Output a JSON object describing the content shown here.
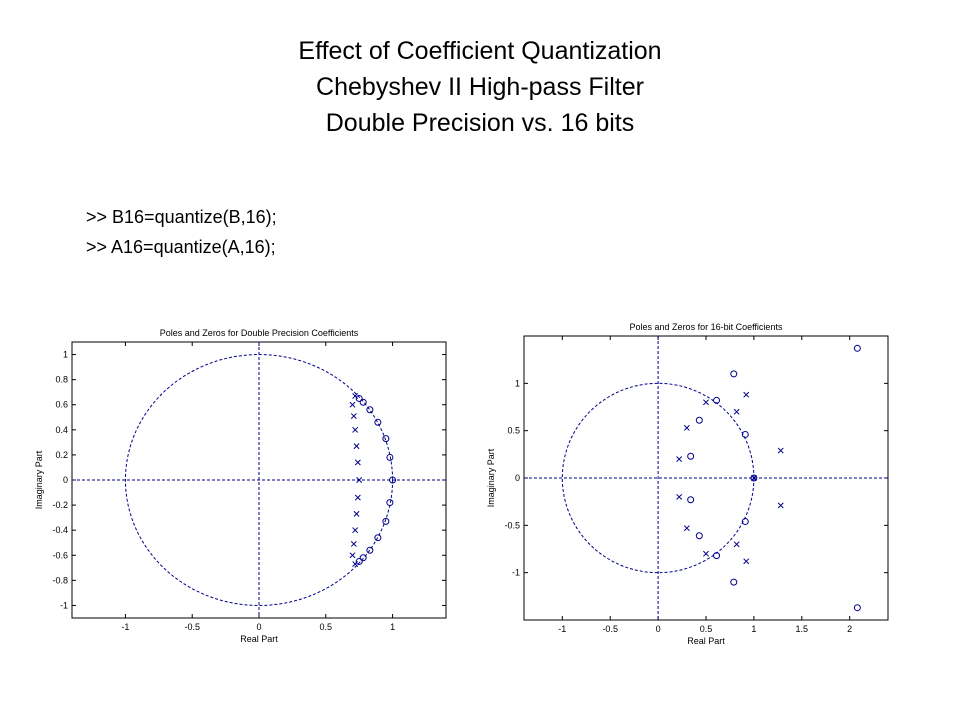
{
  "slide": {
    "title_lines": [
      "Effect of Coefficient Quantization",
      "Chebyshev II High-pass Filter",
      "Double Precision vs. 16 bits"
    ],
    "commands": [
      ">> B16=quantize(B,16);",
      ">> A16=quantize(A,16);"
    ]
  },
  "colors": {
    "marker": "#00008b",
    "axes": "#000000",
    "background": "#ffffff"
  },
  "chart_data": [
    {
      "type": "scatter",
      "title": "Poles and Zeros for Double Precision Coefficients",
      "xlabel": "Real Part",
      "ylabel": "Imaginary Part",
      "xlim": [
        -1.4,
        1.4
      ],
      "ylim": [
        -1.1,
        1.1
      ],
      "xticks": [
        -1,
        -0.5,
        0,
        0.5,
        1
      ],
      "xtick_labels": [
        "-1",
        "-0.5",
        "0",
        "0.5",
        "1"
      ],
      "yticks": [
        1,
        0.8,
        0.6,
        0.4,
        0.2,
        0,
        -0.2,
        -0.4,
        -0.6,
        -0.8,
        -1
      ],
      "ytick_labels": [
        "1",
        "0.8",
        "0.6",
        "0.4",
        "0.2",
        "0",
        "-0.2",
        "-0.4",
        "-0.6",
        "-0.8",
        "-1"
      ],
      "unit_circle": true,
      "zeros": [
        [
          1.0,
          0.0
        ],
        [
          0.98,
          0.18
        ],
        [
          0.98,
          -0.18
        ],
        [
          0.95,
          0.33
        ],
        [
          0.95,
          -0.33
        ],
        [
          0.89,
          0.46
        ],
        [
          0.89,
          -0.46
        ],
        [
          0.83,
          0.56
        ],
        [
          0.83,
          -0.56
        ],
        [
          0.78,
          0.62
        ],
        [
          0.78,
          -0.62
        ],
        [
          0.75,
          0.65
        ],
        [
          0.75,
          -0.65
        ]
      ],
      "poles": [
        [
          0.75,
          0.0
        ],
        [
          0.74,
          0.14
        ],
        [
          0.74,
          -0.14
        ],
        [
          0.73,
          0.27
        ],
        [
          0.73,
          -0.27
        ],
        [
          0.72,
          0.4
        ],
        [
          0.72,
          -0.4
        ],
        [
          0.71,
          0.51
        ],
        [
          0.71,
          -0.51
        ],
        [
          0.7,
          0.6
        ],
        [
          0.7,
          -0.6
        ],
        [
          0.72,
          0.67
        ],
        [
          0.72,
          -0.67
        ]
      ]
    },
    {
      "type": "scatter",
      "title": "Poles and Zeros for 16-bit Coefficients",
      "xlabel": "Real Part",
      "ylabel": "Imaginary Part",
      "xlim": [
        -1.4,
        2.4
      ],
      "ylim": [
        -1.5,
        1.5
      ],
      "xticks": [
        -1,
        -0.5,
        0,
        0.5,
        1,
        1.5,
        2
      ],
      "xtick_labels": [
        "-1",
        "-0.5",
        "0",
        "0.5",
        "1",
        "1.5",
        "2"
      ],
      "yticks": [
        1,
        0.5,
        0,
        -0.5,
        -1
      ],
      "ytick_labels": [
        "1",
        "0.5",
        "0",
        "-0.5",
        "-1"
      ],
      "unit_circle": true,
      "zeros": [
        [
          2.08,
          1.37
        ],
        [
          2.08,
          -1.37
        ],
        [
          0.79,
          1.1
        ],
        [
          0.79,
          -1.1
        ],
        [
          0.61,
          0.82
        ],
        [
          0.61,
          -0.82
        ],
        [
          0.91,
          0.46
        ],
        [
          0.91,
          -0.46
        ],
        [
          0.43,
          0.61
        ],
        [
          0.43,
          -0.61
        ],
        [
          0.34,
          0.23
        ],
        [
          0.34,
          -0.23
        ],
        [
          1.0,
          0.0
        ]
      ],
      "poles": [
        [
          0.92,
          0.88
        ],
        [
          0.92,
          -0.88
        ],
        [
          0.5,
          0.8
        ],
        [
          0.5,
          -0.8
        ],
        [
          0.82,
          0.7
        ],
        [
          0.82,
          -0.7
        ],
        [
          0.3,
          0.53
        ],
        [
          0.3,
          -0.53
        ],
        [
          0.22,
          0.2
        ],
        [
          0.22,
          -0.2
        ],
        [
          1.28,
          0.29
        ],
        [
          1.28,
          -0.29
        ],
        [
          1.0,
          0.0
        ]
      ]
    }
  ]
}
